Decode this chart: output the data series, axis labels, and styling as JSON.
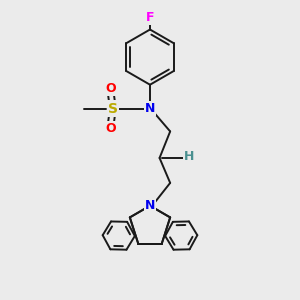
{
  "background_color": "#ebebeb",
  "bond_color": "#1a1a1a",
  "figsize": [
    3.0,
    3.0
  ],
  "dpi": 100,
  "atom_colors": {
    "F": "#ff00ff",
    "N": "#0000ee",
    "O": "#ff0000",
    "S": "#bbaa00",
    "H": "#4a9090",
    "C": "#1a1a1a"
  },
  "lw": 1.4,
  "font_bg": "#ebebeb"
}
